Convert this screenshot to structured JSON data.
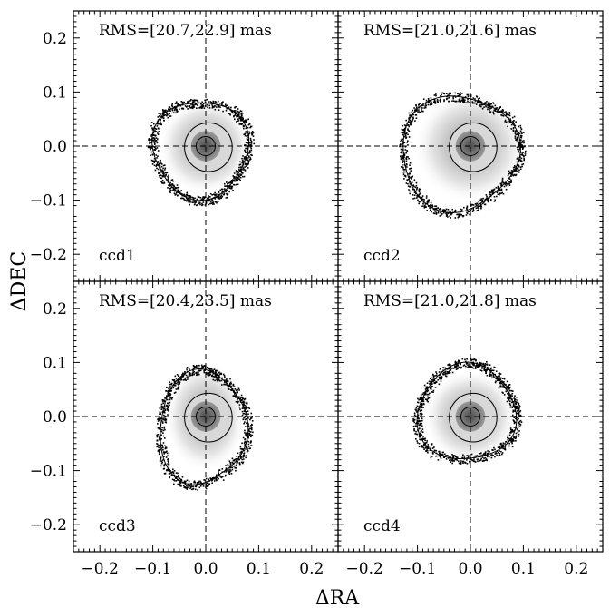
{
  "chart_data": {
    "type": "scatter",
    "description_axes": {
      "xlabel": "ΔRA",
      "ylabel": "ΔDEC",
      "xlim": [
        -0.25,
        0.25
      ],
      "ylim": [
        -0.25,
        0.25
      ],
      "xticks": [
        -0.2,
        -0.1,
        0.0,
        0.1,
        0.2
      ],
      "yticks": [
        -0.2,
        -0.1,
        0.0,
        0.1,
        0.2
      ],
      "xtick_labels": [
        "−0.2",
        "−0.1",
        "0.0",
        "0.1",
        "0.2"
      ],
      "ytick_labels": [
        "−0.2",
        "−0.1",
        "0.0",
        "0.1",
        "0.2"
      ],
      "reference_lines": {
        "x": 0.0,
        "y": 0.0,
        "style": "dashed"
      }
    },
    "panels": [
      {
        "label": "ccd1",
        "rms_text": "RMS=[20.7,22.9] mas",
        "rms": [
          20.7,
          22.9
        ],
        "units": "mas",
        "outer_contour": {
          "xmin": -0.105,
          "xmax": 0.085,
          "ymin": -0.1,
          "ymax": 0.09
        }
      },
      {
        "label": "ccd2",
        "rms_text": "RMS=[21.0,21.6] mas",
        "rms": [
          21.0,
          21.6
        ],
        "units": "mas",
        "outer_contour": {
          "xmin": -0.13,
          "xmax": 0.095,
          "ymin": -0.12,
          "ymax": 0.1
        }
      },
      {
        "label": "ccd3",
        "rms_text": "RMS=[20.4,23.5] mas",
        "rms": [
          20.4,
          23.5
        ],
        "units": "mas",
        "outer_contour": {
          "xmin": -0.085,
          "xmax": 0.08,
          "ymin": -0.125,
          "ymax": 0.09
        }
      },
      {
        "label": "ccd4",
        "rms_text": "RMS=[21.0,21.8] mas",
        "rms": [
          21.0,
          21.8
        ],
        "units": "mas",
        "outer_contour": {
          "xmin": -0.1,
          "xmax": 0.09,
          "ymin": -0.085,
          "ymax": 0.1
        }
      }
    ]
  }
}
